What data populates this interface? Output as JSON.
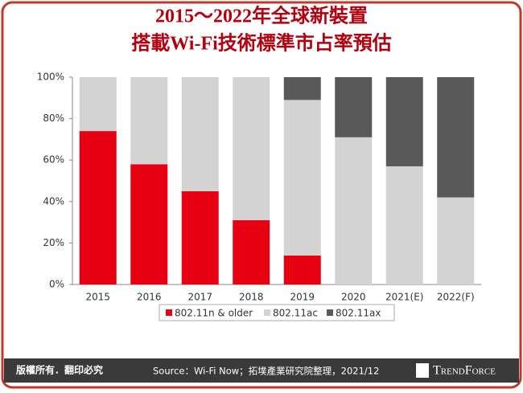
{
  "chart_data": {
    "type": "stacked-bar",
    "title": [
      "2015～2022年全球新裝置",
      "搭載Wi-Fi技術標準市占率預估"
    ],
    "categories": [
      "2015",
      "2016",
      "2017",
      "2018",
      "2019",
      "2020",
      "2021(E)",
      "2022(F)"
    ],
    "series": [
      {
        "name": "802.11n & older",
        "color": "#e60012",
        "values": [
          74,
          58,
          45,
          31,
          14,
          0,
          0,
          0
        ]
      },
      {
        "name": "802.11ac",
        "color": "#d3d3d3",
        "values": [
          26,
          42,
          55,
          69,
          75,
          71,
          57,
          42
        ]
      },
      {
        "name": "802.11ax",
        "color": "#595959",
        "values": [
          0,
          0,
          0,
          0,
          11,
          29,
          43,
          58
        ]
      }
    ],
    "ylim": [
      0,
      100
    ],
    "yticks": [
      {
        "value": 0,
        "label": "0%"
      },
      {
        "value": 20,
        "label": "20%"
      },
      {
        "value": 40,
        "label": "40%"
      },
      {
        "value": 60,
        "label": "60%"
      },
      {
        "value": 80,
        "label": "80%"
      },
      {
        "value": 100,
        "label": "100%"
      }
    ],
    "legend": "bottom"
  },
  "footer": {
    "rights": "版權所有．翻印必究",
    "source": "Source：Wi-Fi Now；拓墣產業研究院整理，2021/12",
    "brand": "TrendForce"
  }
}
